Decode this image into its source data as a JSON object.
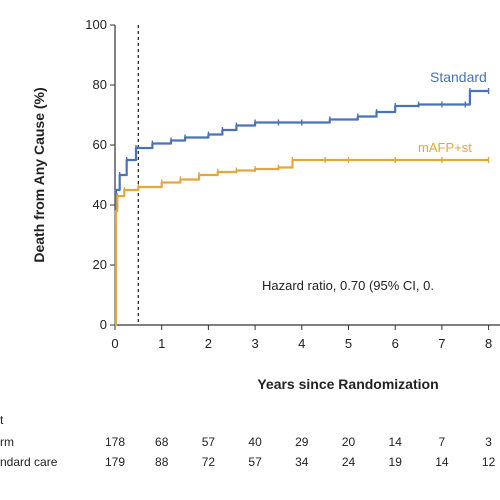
{
  "chart_data": {
    "type": "line",
    "title": "",
    "xlabel": "Years since Randomization",
    "ylabel": "Death from Any Cause (%)",
    "xlim": [
      0,
      8
    ],
    "ylim": [
      0,
      100
    ],
    "x_ticks": [
      0,
      1,
      2,
      3,
      4,
      5,
      6,
      7,
      8
    ],
    "y_ticks": [
      0,
      20,
      40,
      60,
      80,
      100
    ],
    "reference_line_x": 0.5,
    "annotation": "Hazard ratio, 0.70 (95% CI, 0.",
    "series": [
      {
        "name": "Standard",
        "color": "#4a72b8",
        "points": [
          [
            0,
            0
          ],
          [
            0.02,
            45
          ],
          [
            0.1,
            50
          ],
          [
            0.25,
            55
          ],
          [
            0.45,
            59
          ],
          [
            0.8,
            60.5
          ],
          [
            1.2,
            61.5
          ],
          [
            1.5,
            62.5
          ],
          [
            2.0,
            63.5
          ],
          [
            2.3,
            65
          ],
          [
            2.6,
            66.5
          ],
          [
            3.0,
            67.5
          ],
          [
            3.5,
            67.5
          ],
          [
            4.0,
            67.5
          ],
          [
            4.6,
            68.5
          ],
          [
            5.2,
            69.5
          ],
          [
            5.6,
            71
          ],
          [
            6.0,
            73
          ],
          [
            6.5,
            73.5
          ],
          [
            7.0,
            73.5
          ],
          [
            7.5,
            73.5
          ],
          [
            7.6,
            78
          ],
          [
            8.0,
            78
          ]
        ]
      },
      {
        "name": "mAFP+st",
        "color": "#e3a83d",
        "points": [
          [
            0,
            0
          ],
          [
            0.02,
            38
          ],
          [
            0.05,
            43
          ],
          [
            0.2,
            45
          ],
          [
            0.5,
            46
          ],
          [
            1.0,
            47.5
          ],
          [
            1.4,
            48.5
          ],
          [
            1.8,
            50
          ],
          [
            2.2,
            51
          ],
          [
            2.6,
            51.5
          ],
          [
            3.0,
            52
          ],
          [
            3.5,
            52.5
          ],
          [
            3.8,
            55
          ],
          [
            4.5,
            55
          ],
          [
            5.0,
            55
          ],
          [
            6.0,
            55
          ],
          [
            7.0,
            55
          ],
          [
            8.0,
            55
          ]
        ]
      }
    ],
    "risk_table": {
      "header": "t",
      "times": [
        0,
        1,
        2,
        3,
        4,
        5,
        6,
        7,
        8
      ],
      "rows": [
        {
          "label": "rm",
          "values": [
            "178",
            "68",
            "57",
            "40",
            "29",
            "20",
            "14",
            "7",
            "3"
          ]
        },
        {
          "label": "ndard care",
          "values": [
            "179",
            "88",
            "72",
            "57",
            "34",
            "24",
            "19",
            "14",
            "12"
          ]
        }
      ]
    }
  }
}
